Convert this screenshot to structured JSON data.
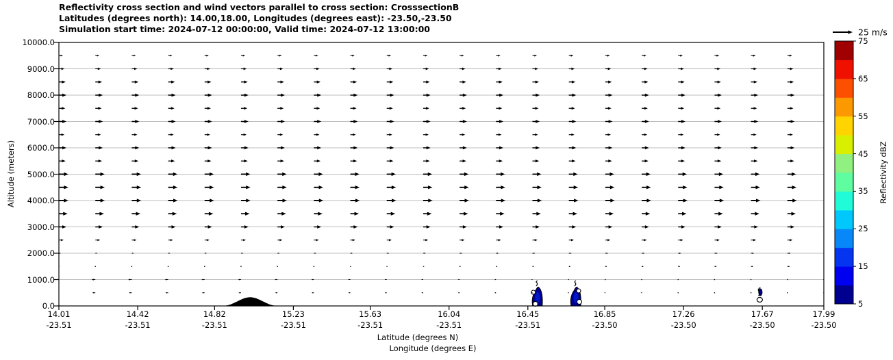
{
  "title": {
    "line1": "Reflectivity cross section and wind vectors parallel to cross section: CrosssectionB",
    "line2": "Latitudes (degrees north): 14.00,18.00, Longitudes (degrees east): -23.50,-23.50",
    "line3": "Simulation start time: 2024-07-12 00:00:00, Valid time: 2024-07-12 13:00:00"
  },
  "axes": {
    "y": {
      "label": "Altitude (meters)",
      "min": 0,
      "max": 10000,
      "tick_labels": [
        "0.0",
        "1000.0",
        "2000.0",
        "3000.0",
        "4000.0",
        "5000.0",
        "6000.0",
        "7000.0",
        "8000.0",
        "9000.0",
        "10000.0"
      ]
    },
    "x": {
      "label_line1": "Latitude (degrees N)",
      "label_line2": "Longitude (degrees E)",
      "min": 14.01,
      "max": 17.99,
      "ticks": [
        {
          "lat": "14.01",
          "lon": "-23.51"
        },
        {
          "lat": "14.42",
          "lon": "-23.51"
        },
        {
          "lat": "14.82",
          "lon": "-23.51"
        },
        {
          "lat": "15.23",
          "lon": "-23.51"
        },
        {
          "lat": "15.63",
          "lon": "-23.51"
        },
        {
          "lat": "16.04",
          "lon": "-23.51"
        },
        {
          "lat": "16.45",
          "lon": "-23.51"
        },
        {
          "lat": "16.85",
          "lon": "-23.50"
        },
        {
          "lat": "17.26",
          "lon": "-23.50"
        },
        {
          "lat": "17.67",
          "lon": "-23.50"
        },
        {
          "lat": "17.99",
          "lon": "-23.50"
        }
      ]
    }
  },
  "colorbar": {
    "label": "Reflectivity dBZ",
    "min": 5,
    "max": 75,
    "tick_labels": [
      "5",
      "15",
      "25",
      "35",
      "45",
      "55",
      "65",
      "75"
    ],
    "band_colors": [
      "#000090",
      "#0000f0",
      "#0535f0",
      "#0888f8",
      "#00c8fc",
      "#20fcd8",
      "#60fca0",
      "#90f080",
      "#d8f000",
      "#ffd400",
      "#fc9800",
      "#fc5000",
      "#f01000",
      "#a00000"
    ]
  },
  "quiver_key": {
    "label": "25 m/s",
    "speed_ms": 25
  },
  "colors": {
    "arrow": "#000000",
    "grid": "#a6a6a6",
    "frame": "#000000",
    "terrain": "#000000",
    "cell_fill": "#000090",
    "cell_inner": "#0018c8",
    "cell_ring_fill": "#ffffff"
  },
  "chart_data": {
    "type": "vector_field_cross_section",
    "title": "Reflectivity cross section and wind vectors parallel to cross section: CrosssectionB",
    "xlabel": "Latitude (degrees N) / Longitude (degrees E)",
    "ylabel": "Altitude (meters)",
    "xlim": [
      14.01,
      17.99
    ],
    "ylim": [
      0,
      10000
    ],
    "grid": "horizontal-only",
    "reference_vector_ms": 25,
    "wind_columns": 22,
    "wind_rows": [
      {
        "altitude_m": 9500,
        "u_left_ms": 5.0,
        "u_right_ms": 6.0
      },
      {
        "altitude_m": 9000,
        "u_left_ms": 7.0,
        "u_right_ms": 7.5
      },
      {
        "altitude_m": 8500,
        "u_left_ms": 8.5,
        "u_right_ms": 8.0
      },
      {
        "altitude_m": 8000,
        "u_left_ms": 9.5,
        "u_right_ms": 9.0
      },
      {
        "altitude_m": 7500,
        "u_left_ms": 8.0,
        "u_right_ms": 7.5
      },
      {
        "altitude_m": 7000,
        "u_left_ms": 9.5,
        "u_right_ms": 9.0
      },
      {
        "altitude_m": 6500,
        "u_left_ms": 7.0,
        "u_right_ms": 7.0
      },
      {
        "altitude_m": 6000,
        "u_left_ms": 9.5,
        "u_right_ms": 9.0
      },
      {
        "altitude_m": 5500,
        "u_left_ms": 8.5,
        "u_right_ms": 8.5
      },
      {
        "altitude_m": 5000,
        "u_left_ms": 12.0,
        "u_right_ms": 11.0
      },
      {
        "altitude_m": 4500,
        "u_left_ms": 12.0,
        "u_right_ms": 11.5
      },
      {
        "altitude_m": 4000,
        "u_left_ms": 12.0,
        "u_right_ms": 12.0
      },
      {
        "altitude_m": 3500,
        "u_left_ms": 11.0,
        "u_right_ms": 10.5
      },
      {
        "altitude_m": 3000,
        "u_left_ms": 9.5,
        "u_right_ms": 9.0
      },
      {
        "altitude_m": 2500,
        "u_left_ms": 6.0,
        "u_right_ms": 6.5
      },
      {
        "altitude_m": 2000,
        "u_left_ms": 2.5,
        "u_right_ms": 4.0
      },
      {
        "altitude_m": 1500,
        "u_left_ms": 0.3,
        "u_right_ms": 3.2
      },
      {
        "altitude_m": 1000,
        "u_left_ms": -5.0,
        "u_right_ms": 0.3
      },
      {
        "altitude_m": 500,
        "u_left_ms": -4.0,
        "u_right_ms": -0.5
      }
    ],
    "terrain": {
      "lat_start": 14.85,
      "lat_end": 15.16,
      "peak_lat": 15.0,
      "peak_altitude_m": 330
    },
    "reflectivity_cells": [
      {
        "lat": 16.5,
        "alt_base_m": 0,
        "alt_top_m": 780,
        "max_dbz": 15
      },
      {
        "lat": 16.7,
        "alt_base_m": 0,
        "alt_top_m": 780,
        "max_dbz": 15
      },
      {
        "lat": 17.66,
        "alt_base_m": 0,
        "alt_top_m": 700,
        "max_dbz": 10
      }
    ]
  }
}
